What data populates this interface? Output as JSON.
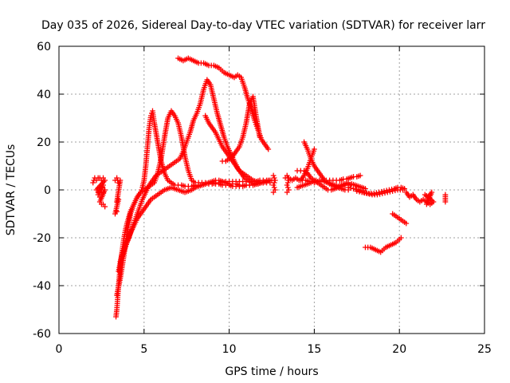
{
  "chart_data": {
    "type": "scatter",
    "title": "Day 035 of 2026, Sidereal Day-to-day VTEC variation (SDTVAR) for receiver larr",
    "xlabel": "GPS time / hours",
    "ylabel": "SDTVAR / TECUs",
    "xlim": [
      0,
      25
    ],
    "ylim": [
      -60,
      60
    ],
    "x_ticks": [
      "0",
      "5",
      "10",
      "15",
      "20",
      "25"
    ],
    "y_ticks": [
      "-60",
      "-40",
      "-20",
      "0",
      "20",
      "40",
      "60"
    ],
    "grid": true,
    "marker": "plus",
    "color": "#ff0000",
    "series": [
      {
        "x": [
          2.0,
          2.1,
          2.2,
          2.3,
          2.4,
          2.5,
          2.6,
          2.7,
          2.2,
          2.3,
          2.4,
          2.5,
          2.6,
          2.3,
          2.4,
          2.5,
          2.6,
          2.7,
          2.4,
          2.5,
          2.6,
          2.7
        ],
        "y": [
          3,
          5,
          4,
          5,
          5,
          4,
          5,
          4,
          0,
          -1,
          1,
          0,
          2,
          -2,
          -3,
          -2,
          -1,
          0,
          -5,
          -6,
          -6,
          -7
        ]
      },
      {
        "x": [
          3.3,
          3.4,
          3.5,
          3.6,
          3.4,
          3.5,
          3.3,
          3.4
        ],
        "y": [
          4,
          5,
          3,
          4,
          -5,
          -4,
          -10,
          -9
        ]
      },
      {
        "x": [
          3.35,
          3.4,
          3.45,
          3.5,
          3.55,
          3.6,
          3.7,
          3.8,
          3.9,
          4.0,
          4.2,
          4.4,
          4.6,
          4.8,
          4.9,
          5.0,
          5.1,
          5.2,
          5.3,
          5.4,
          5.5,
          5.6,
          5.8,
          6.0,
          6.2,
          6.4,
          6.6,
          6.8,
          7.0,
          7.2,
          7.4,
          7.6,
          7.8,
          8.0,
          8.2,
          8.4,
          8.6,
          8.8,
          9.0,
          9.2,
          9.4,
          9.6,
          9.8,
          10.0,
          10.2,
          10.4,
          10.6,
          10.8,
          11.0,
          11.2,
          11.4,
          11.6,
          11.8,
          12.0,
          12.2,
          12.4
        ],
        "y": [
          -53,
          -50,
          -45,
          -40,
          -36,
          -32,
          -26,
          -21,
          -17,
          -14,
          -9,
          -6,
          -3,
          -1,
          1,
          4,
          10,
          18,
          26,
          31,
          33,
          28,
          20,
          12,
          7,
          4,
          3,
          2,
          2,
          2,
          1.5,
          1.5,
          1.5,
          2,
          2,
          2,
          2.5,
          3,
          3,
          2.5,
          2.5,
          2,
          2,
          2,
          1.5,
          1.5,
          1.5,
          1.5,
          2,
          2,
          2,
          2.5,
          3,
          3,
          3.5,
          4
        ]
      },
      {
        "x": [
          3.4,
          3.6,
          3.8,
          4.0,
          4.2,
          4.4,
          4.6,
          4.8,
          5.0,
          5.2,
          5.4,
          5.6,
          5.8,
          6.0,
          6.2,
          6.4,
          6.6,
          6.8,
          7.0,
          7.2,
          7.4,
          7.6,
          7.8,
          8.0,
          8.2,
          8.4,
          8.6,
          8.8,
          9.0,
          9.2,
          9.4,
          9.6,
          9.8,
          10.0,
          10.2,
          10.4,
          10.6,
          10.8,
          11.0,
          11.2,
          11.4,
          11.6,
          11.8,
          12.0
        ],
        "y": [
          -44,
          -37,
          -28,
          -18,
          -10,
          -6,
          -3,
          -1,
          0,
          1,
          2,
          3,
          7,
          13,
          22,
          30,
          33,
          31,
          28,
          22,
          14,
          8,
          4,
          3,
          3,
          3,
          3,
          3,
          3.5,
          4,
          4,
          3.5,
          3,
          2.5,
          2.5,
          2.5,
          2,
          2,
          2,
          2,
          2,
          2.5,
          3,
          3
        ]
      },
      {
        "x": [
          3.5,
          3.7,
          3.9,
          4.1,
          4.3,
          4.5,
          4.7,
          4.9,
          5.1,
          5.3,
          5.5,
          5.7,
          5.9,
          6.1,
          6.3,
          6.5,
          6.7,
          6.9,
          7.1,
          7.3,
          7.5,
          7.7,
          7.9,
          8.1,
          8.3,
          8.5,
          8.7,
          8.9,
          9.1,
          9.3,
          9.5,
          9.7,
          9.9,
          10.1,
          10.3,
          10.5,
          10.7,
          10.9,
          11.1,
          11.3,
          11.5,
          11.7,
          11.9,
          12.1,
          12.3,
          12.5
        ],
        "y": [
          -34,
          -27,
          -23,
          -20,
          -16,
          -12,
          -8,
          -4,
          -1,
          2,
          4,
          6,
          7,
          8,
          9,
          10,
          11,
          12,
          13,
          16,
          20,
          24,
          29,
          32,
          36,
          42,
          46,
          44,
          38,
          32,
          27,
          22,
          18,
          15,
          12,
          9,
          7,
          5,
          4,
          3,
          2.5,
          2.5,
          3,
          3.5,
          4,
          4
        ]
      },
      {
        "x": [
          3.6,
          3.8,
          4.0,
          4.2,
          4.4,
          4.6,
          4.8,
          5.0,
          5.2,
          5.4,
          5.6,
          5.8,
          6.0,
          6.2,
          6.4,
          6.6,
          6.8,
          7.0,
          7.2,
          7.4,
          7.6,
          7.8,
          8.0,
          8.2,
          8.4,
          8.6,
          8.8,
          9.0,
          9.2,
          9.4,
          9.6,
          9.8,
          10.0,
          10.2,
          10.4,
          10.6,
          10.8,
          11.0,
          11.2,
          11.4,
          11.6,
          11.8,
          12.0,
          12.2,
          12.4
        ],
        "y": [
          -30,
          -26,
          -22,
          -18,
          -15,
          -12,
          -10,
          -8,
          -6,
          -4,
          -3,
          -2,
          -1,
          0,
          0.5,
          1,
          0.5,
          0,
          -0.5,
          -1,
          -0.5,
          0,
          1,
          1.5,
          2,
          2.5,
          2.5,
          2.5,
          3,
          3,
          3.5,
          3.5,
          3.5,
          3.5,
          3.5,
          3.5,
          3.5,
          3.5,
          3.5,
          3.5,
          3.5,
          4,
          4,
          4,
          4
        ]
      },
      {
        "x": [
          7.0,
          7.3,
          7.6,
          7.9,
          8.2,
          8.5,
          8.8,
          9.1,
          9.4,
          9.7,
          10.0,
          10.3,
          10.5,
          10.7,
          10.9,
          11.1,
          11.3,
          11.5,
          11.7,
          11.9,
          12.1,
          12.3
        ],
        "y": [
          55,
          54,
          55,
          54,
          53,
          53,
          52,
          52,
          51,
          49,
          48,
          47,
          48,
          47,
          43,
          38,
          34,
          29,
          25,
          21,
          19,
          17
        ]
      },
      {
        "x": [
          8.6,
          8.8,
          9.0,
          9.2,
          9.4,
          9.6,
          9.8,
          10.0,
          10.2,
          10.4,
          10.6,
          10.8,
          11.0,
          11.2,
          11.4,
          11.6,
          11.8,
          12.0,
          12.2,
          12.4
        ],
        "y": [
          31,
          28,
          26,
          24,
          21,
          18,
          16,
          14,
          12,
          10,
          8,
          7,
          6,
          5,
          4,
          3.5,
          3,
          3,
          3,
          3
        ]
      },
      {
        "x": [
          9.6,
          9.8,
          10.0,
          10.2,
          10.4,
          10.6,
          10.8,
          11.0,
          11.2,
          11.4,
          11.6,
          11.8
        ],
        "y": [
          12,
          12,
          13,
          14,
          16,
          18,
          22,
          28,
          36,
          39,
          30,
          22
        ]
      },
      {
        "x": [
          12.6,
          12.7,
          12.6,
          12.7,
          12.6
        ],
        "y": [
          6,
          4,
          2,
          0,
          -1
        ]
      },
      {
        "x": [
          13.3,
          13.5,
          13.7,
          13.9,
          14.1,
          14.3,
          14.5,
          14.7,
          14.9,
          15.1,
          15.3,
          15.5,
          15.7,
          15.9,
          16.1,
          16.3,
          16.5,
          16.7,
          16.9,
          17.1,
          17.3,
          17.5,
          17.7
        ],
        "y": [
          5,
          5,
          4,
          5,
          4,
          4,
          4,
          3.5,
          3.5,
          4,
          4,
          4,
          4,
          4,
          4,
          4,
          4,
          4.5,
          4.5,
          5,
          5.5,
          5.5,
          6
        ]
      },
      {
        "x": [
          13.4,
          13.5,
          13.4,
          13.5,
          13.4
        ],
        "y": [
          6,
          4,
          2,
          0,
          -1
        ]
      },
      {
        "x": [
          14.0,
          14.2,
          14.4,
          14.6,
          14.8,
          15.0,
          15.2,
          15.4,
          15.6,
          15.8,
          16.0,
          16.2,
          16.4,
          16.6,
          16.8,
          17.0,
          17.2,
          17.4,
          17.6,
          17.8,
          18.0
        ],
        "y": [
          8,
          8,
          8,
          7,
          5,
          4,
          3,
          2,
          1,
          0,
          0,
          0.5,
          1,
          1.5,
          2,
          2,
          2.5,
          2,
          1.5,
          1,
          0.5
        ]
      },
      {
        "x": [
          14.4,
          14.6,
          14.8,
          15.0,
          15.2,
          15.4,
          15.6,
          15.8,
          16.0,
          16.2,
          16.4,
          16.6,
          16.8,
          17.0
        ],
        "y": [
          20,
          17,
          13,
          10,
          8,
          6,
          4,
          3,
          2,
          1.5,
          1,
          0.5,
          0,
          0
        ]
      },
      {
        "x": [
          14.2,
          14.4,
          14.6,
          14.8,
          15.0
        ],
        "y": [
          4,
          6,
          9,
          13,
          17
        ]
      },
      {
        "x": [
          14.0,
          14.2,
          14.4,
          14.6,
          14.8,
          15.0,
          15.2,
          15.4,
          15.6,
          15.8,
          16.0,
          16.2,
          16.4,
          16.6,
          16.8,
          17.0
        ],
        "y": [
          1,
          1.5,
          2,
          2.5,
          3,
          3,
          3.5,
          3.5,
          3.5,
          3,
          2.5,
          2,
          1.5,
          2,
          2.5,
          3
        ]
      },
      {
        "x": [
          17.0,
          17.3,
          17.6,
          17.9,
          18.2,
          18.5,
          18.8,
          19.1,
          19.4,
          19.7,
          19.9,
          20.1,
          20.3
        ],
        "y": [
          1,
          0.5,
          0,
          -1,
          -1.5,
          -1.5,
          -1,
          -0.5,
          0,
          0.5,
          1,
          1,
          0.5
        ]
      },
      {
        "x": [
          17.5,
          17.8,
          18.1,
          18.4,
          18.7,
          19.0,
          19.3,
          19.6,
          19.9,
          20.2
        ],
        "y": [
          -0.5,
          -1,
          -1.5,
          -2,
          -2,
          -1.5,
          -1,
          -0.5,
          0,
          0
        ]
      },
      {
        "x": [
          18.0,
          18.3,
          18.6,
          18.9,
          19.2,
          19.5,
          19.8,
          20.1
        ],
        "y": [
          -24,
          -24,
          -25,
          -26,
          -24,
          -23,
          -22,
          -20
        ]
      },
      {
        "x": [
          19.6,
          19.8,
          20.0,
          20.2,
          20.4
        ],
        "y": [
          -10,
          -11,
          -12,
          -13,
          -14
        ]
      },
      {
        "x": [
          20.4,
          20.6,
          20.8,
          21.0,
          21.2,
          21.4,
          21.6,
          21.8,
          22.0,
          21.5,
          21.7,
          21.9,
          21.6,
          21.8
        ],
        "y": [
          -1,
          -3,
          -2,
          -4,
          -5,
          -4,
          -5,
          -6,
          -5,
          -2,
          -3,
          -1,
          -6,
          -6
        ]
      },
      {
        "x": [
          22.7,
          22.7
        ],
        "y": [
          -2,
          -5
        ]
      }
    ]
  }
}
